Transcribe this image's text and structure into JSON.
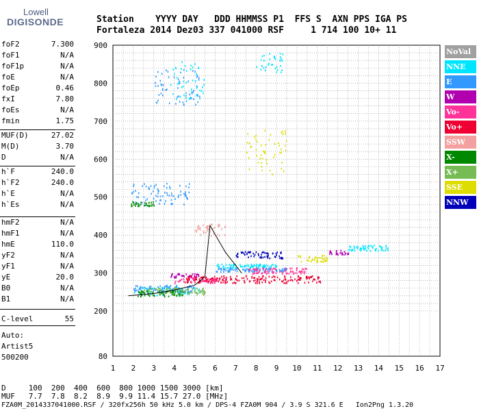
{
  "logo": {
    "top": "Lowell",
    "main": "DIGISONDE"
  },
  "header": {
    "line1": "Station    YYYY DAY   DDD HHMMSS P1  FFS S  AXN PPS IGA PS",
    "line2": "Fortaleza 2014 Dez03 337 041000 RSF     1 714 100 10+ 11"
  },
  "params": [
    {
      "name": "foF2",
      "value": "7.300"
    },
    {
      "name": "foF1",
      "value": "N/A"
    },
    {
      "name": "foF1p",
      "value": "N/A"
    },
    {
      "name": "foE",
      "value": "N/A"
    },
    {
      "name": "foEp",
      "value": "0.46"
    },
    {
      "name": "fxI",
      "value": "7.80"
    },
    {
      "name": "foEs",
      "value": "N/A"
    },
    {
      "name": "fmin",
      "value": "1.75"
    },
    {
      "name": "MUF(D)",
      "value": "27.02"
    },
    {
      "name": "M(D)",
      "value": "3.70"
    },
    {
      "name": "D",
      "value": "N/A"
    },
    {
      "name": "h`F",
      "value": "240.0"
    },
    {
      "name": "h`F2",
      "value": "240.0"
    },
    {
      "name": "h`E",
      "value": "N/A"
    },
    {
      "name": "h`Es",
      "value": "N/A"
    },
    {
      "name": "hmF2",
      "value": "N/A"
    },
    {
      "name": "hmF1",
      "value": "N/A"
    },
    {
      "name": "hmE",
      "value": "110.0"
    },
    {
      "name": "yF2",
      "value": "N/A"
    },
    {
      "name": "yF1",
      "value": "N/A"
    },
    {
      "name": "yE",
      "value": "20.0"
    },
    {
      "name": "B0",
      "value": "N/A"
    },
    {
      "name": "B1",
      "value": "N/A"
    },
    {
      "name": "C-level",
      "value": "55"
    }
  ],
  "auto": {
    "line1": "Auto:",
    "line2": "Artist5",
    "line3": "500200"
  },
  "legend": [
    {
      "label": "NoVal",
      "color": "#a0a0a0"
    },
    {
      "label": "NNE",
      "color": "#00e5ff"
    },
    {
      "label": "E",
      "color": "#3399ff"
    },
    {
      "label": "W",
      "color": "#b000b0"
    },
    {
      "label": "Vo-",
      "color": "#ff3399"
    },
    {
      "label": "Vo+",
      "color": "#ee0033"
    },
    {
      "label": "SSW",
      "color": "#f5a0a0"
    },
    {
      "label": "X-",
      "color": "#008800"
    },
    {
      "label": "X+",
      "color": "#77bb55"
    },
    {
      "label": "SSE",
      "color": "#dddd00"
    },
    {
      "label": "NNW",
      "color": "#0000bb"
    }
  ],
  "bottom": {
    "line1": "D     100  200  400  600  800 1000 1500 3000 [km]",
    "line2": "MUF   7.7  7.8  8.2  8.9  9.9 11.4 15.7 27.0 [MHz]",
    "line3": "FZA0M_2014337041000.RSF / 320fx256h 50 kHz 5.0 km / DPS-4 FZA0M 904 / 3.9 S 321.6 E   Ion2Png 1.3.20"
  },
  "chart_data": {
    "type": "scatter",
    "title": "",
    "xlabel": "",
    "ylabel": "",
    "xlim": [
      1,
      17
    ],
    "ylim": [
      80,
      900
    ],
    "x_ticks": [
      1,
      2,
      3,
      4,
      5,
      6,
      7,
      8,
      9,
      10,
      11,
      12,
      13,
      14,
      15,
      16,
      17
    ],
    "y_ticks": [
      80,
      200,
      300,
      400,
      500,
      600,
      700,
      800,
      900
    ],
    "grid": true,
    "y_scale_breaks": [
      [
        80,
        200
      ],
      [
        200,
        900
      ]
    ],
    "trace_series": [
      {
        "name": "trace",
        "points": [
          [
            1.75,
            240
          ],
          [
            3.0,
            246
          ],
          [
            4.0,
            255
          ],
          [
            5.0,
            268
          ],
          [
            5.5,
            290
          ],
          [
            5.75,
            425
          ],
          [
            6.5,
            355
          ],
          [
            7.3,
            300
          ]
        ]
      }
    ],
    "echo_series": [
      {
        "name": "NNE",
        "regions": [
          [
            2.0,
            5.3,
            243,
            265
          ],
          [
            6.0,
            9.0,
            315,
            325
          ],
          [
            12.5,
            14.5,
            360,
            375
          ],
          [
            3.8,
            5.5,
            760,
            860
          ],
          [
            8.0,
            9.3,
            830,
            880
          ]
        ]
      },
      {
        "name": "E",
        "regions": [
          [
            2.0,
            5.0,
            250,
            270
          ],
          [
            6.0,
            9.5,
            305,
            315
          ],
          [
            1.9,
            4.8,
            480,
            540
          ],
          [
            3.0,
            5.3,
            745,
            840
          ]
        ]
      },
      {
        "name": "W",
        "regions": [
          [
            3.8,
            5.2,
            290,
            300
          ],
          [
            11.5,
            12.5,
            350,
            362
          ]
        ]
      },
      {
        "name": "Vo-",
        "regions": [
          [
            4.0,
            6.5,
            275,
            290
          ],
          [
            7.5,
            10.5,
            300,
            315
          ]
        ]
      },
      {
        "name": "Vo+",
        "regions": [
          [
            4.5,
            11.2,
            275,
            295
          ]
        ]
      },
      {
        "name": "SSW",
        "regions": [
          [
            5.0,
            6.5,
            400,
            430
          ]
        ]
      },
      {
        "name": "X-",
        "regions": [
          [
            2.2,
            4.5,
            240,
            255
          ],
          [
            1.8,
            3.0,
            478,
            490
          ]
        ]
      },
      {
        "name": "X+",
        "regions": [
          [
            2.5,
            5.5,
            245,
            262
          ]
        ]
      },
      {
        "name": "SSE",
        "regions": [
          [
            10.0,
            11.5,
            330,
            350
          ],
          [
            7.5,
            9.5,
            560,
            680
          ]
        ]
      },
      {
        "name": "NNW",
        "regions": [
          [
            7.0,
            9.3,
            340,
            358
          ]
        ]
      }
    ]
  }
}
